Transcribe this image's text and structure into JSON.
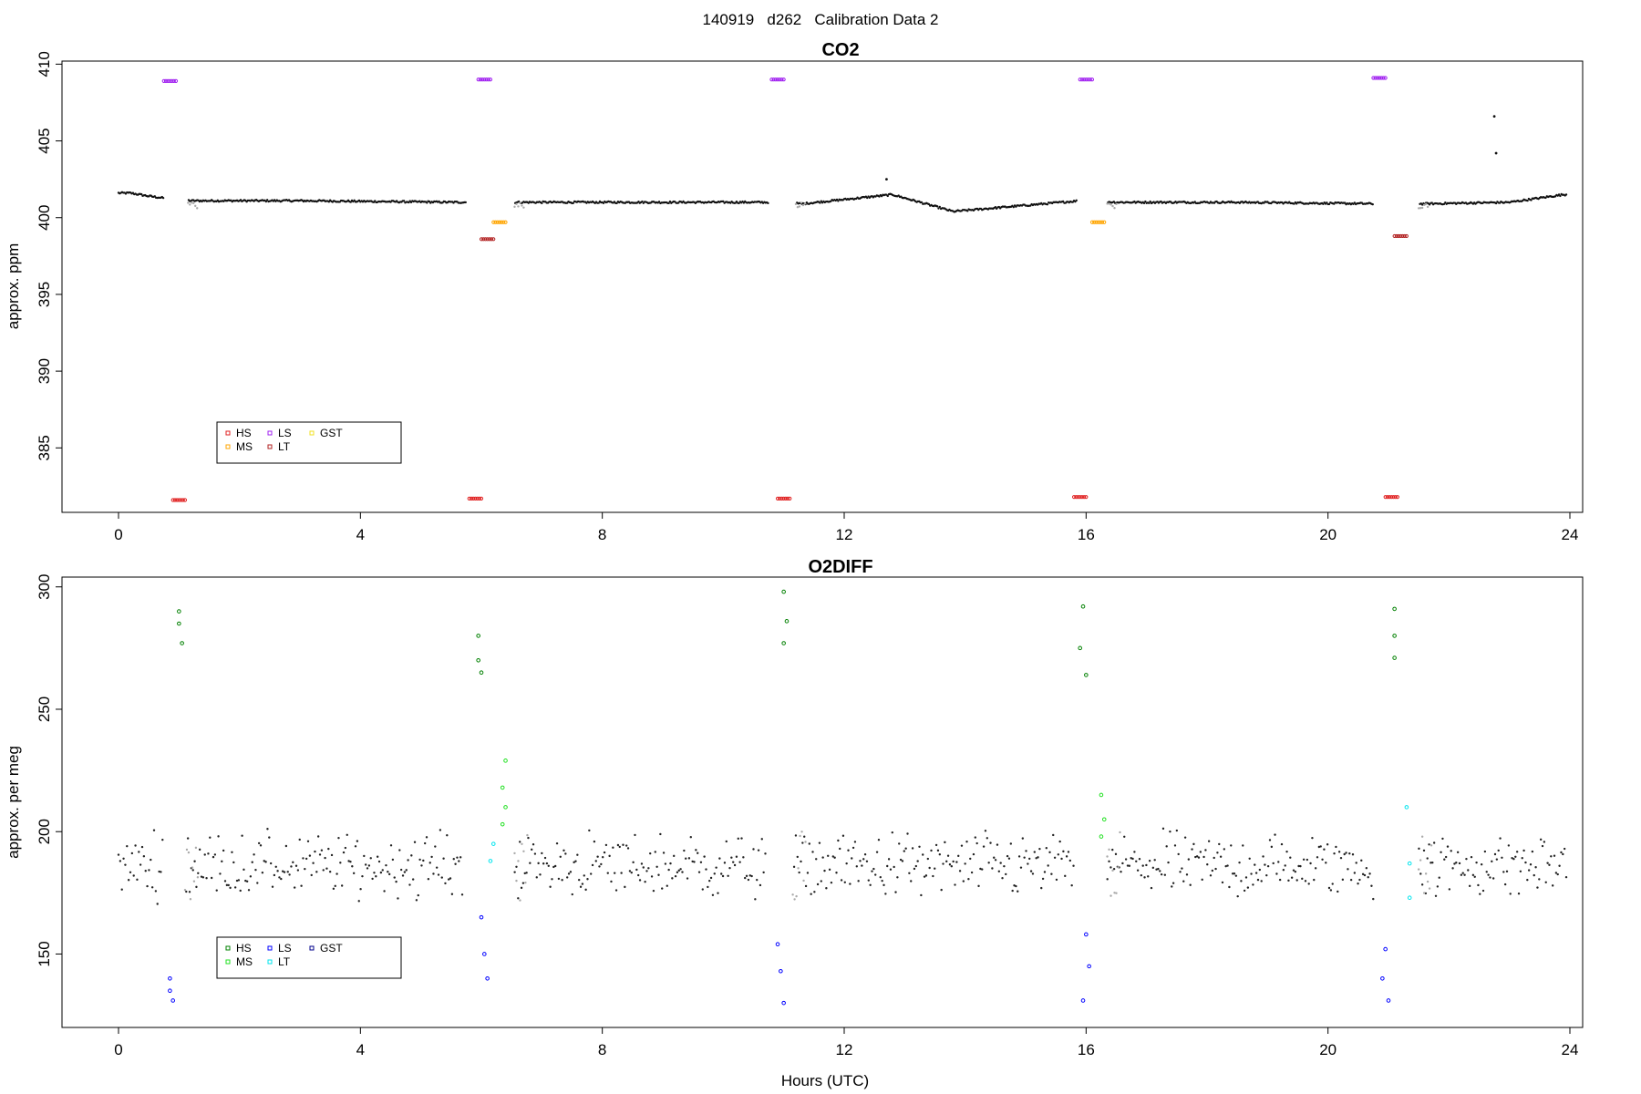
{
  "page_title": "140919   d262   Calibration Data 2",
  "chart_data": [
    {
      "type": "scatter",
      "title": "CO2",
      "xlabel": "",
      "ylabel": "approx. ppm",
      "xlim": [
        0,
        24
      ],
      "ylim": [
        380.8,
        410.2
      ],
      "xticks": [
        0,
        4,
        8,
        12,
        16,
        20,
        24
      ],
      "yticks": [
        385,
        390,
        395,
        400,
        405,
        410
      ],
      "grid": false,
      "legend_placement": "bottom-left",
      "legend": [
        {
          "label": "HS",
          "color": "#e02020"
        },
        {
          "label": "MS",
          "color": "#ffa500"
        },
        {
          "label": "LS",
          "color": "#a020f0"
        },
        {
          "label": "LT",
          "color": "#b22222"
        },
        {
          "label": "GST",
          "color": "#f0e020"
        }
      ],
      "background_points": [
        {
          "x": 0.2,
          "y": 401.6
        },
        {
          "x": 0.5,
          "y": 401.4
        },
        {
          "x": 0.7,
          "y": 401.3
        },
        {
          "x": 1.2,
          "y": 401.1
        },
        {
          "x": 3.0,
          "y": 401.1
        },
        {
          "x": 5.6,
          "y": 401.0
        },
        {
          "x": 6.6,
          "y": 401.0
        },
        {
          "x": 8.5,
          "y": 401.0
        },
        {
          "x": 10.8,
          "y": 401.0
        },
        {
          "x": 11.3,
          "y": 400.9
        },
        {
          "x": 12.8,
          "y": 401.5
        },
        {
          "x": 13.8,
          "y": 400.4
        },
        {
          "x": 15.9,
          "y": 401.1
        },
        {
          "x": 16.5,
          "y": 401.0
        },
        {
          "x": 18.5,
          "y": 401.0
        },
        {
          "x": 20.8,
          "y": 400.9
        },
        {
          "x": 21.6,
          "y": 400.9
        },
        {
          "x": 23.0,
          "y": 401.0
        },
        {
          "x": 23.9,
          "y": 401.5
        }
      ],
      "outliers": [
        {
          "x": 22.75,
          "y": 406.6
        },
        {
          "x": 22.78,
          "y": 404.2
        },
        {
          "x": 12.7,
          "y": 402.5
        }
      ],
      "series": [
        {
          "name": "HS",
          "color": "#e02020",
          "points": [
            {
              "x": 1.0,
              "y": 381.6
            },
            {
              "x": 5.9,
              "y": 381.7
            },
            {
              "x": 11.0,
              "y": 381.7
            },
            {
              "x": 15.9,
              "y": 381.8
            },
            {
              "x": 21.05,
              "y": 381.8
            }
          ]
        },
        {
          "name": "MS",
          "color": "#ffa500",
          "points": [
            {
              "x": 6.3,
              "y": 399.7
            },
            {
              "x": 16.2,
              "y": 399.7
            }
          ]
        },
        {
          "name": "LS",
          "color": "#a020f0",
          "points": [
            {
              "x": 0.85,
              "y": 408.9
            },
            {
              "x": 6.05,
              "y": 409.0
            },
            {
              "x": 10.9,
              "y": 409.0
            },
            {
              "x": 16.0,
              "y": 409.0
            },
            {
              "x": 20.85,
              "y": 409.1
            }
          ]
        },
        {
          "name": "LT",
          "color": "#b22222",
          "points": [
            {
              "x": 6.1,
              "y": 398.6
            },
            {
              "x": 21.2,
              "y": 398.8
            }
          ]
        }
      ]
    },
    {
      "type": "scatter",
      "title": "O2DIFF",
      "xlabel": "Hours (UTC)",
      "ylabel": "approx. per meg",
      "xlim": [
        0,
        24
      ],
      "ylim": [
        120,
        304
      ],
      "xticks": [
        0,
        4,
        8,
        12,
        16,
        20,
        24
      ],
      "yticks": [
        150,
        200,
        250,
        300
      ],
      "grid": false,
      "legend_placement": "bottom-left",
      "legend": [
        {
          "label": "HS",
          "color": "#008000"
        },
        {
          "label": "MS",
          "color": "#20e020"
        },
        {
          "label": "LS",
          "color": "#0000ff"
        },
        {
          "label": "LT",
          "color": "#00e5ee"
        },
        {
          "label": "GST",
          "color": "#00008b"
        }
      ],
      "background_mean": 186,
      "background_spread": 14,
      "series": [
        {
          "name": "HS",
          "color": "#008000",
          "points": [
            {
              "x": 1.0,
              "y": 290
            },
            {
              "x": 1.0,
              "y": 285
            },
            {
              "x": 1.05,
              "y": 277
            },
            {
              "x": 5.95,
              "y": 280
            },
            {
              "x": 5.95,
              "y": 270
            },
            {
              "x": 6.0,
              "y": 265
            },
            {
              "x": 11.0,
              "y": 298
            },
            {
              "x": 11.05,
              "y": 286
            },
            {
              "x": 11.0,
              "y": 277
            },
            {
              "x": 15.95,
              "y": 292
            },
            {
              "x": 15.9,
              "y": 275
            },
            {
              "x": 16.0,
              "y": 264
            },
            {
              "x": 21.1,
              "y": 291
            },
            {
              "x": 21.1,
              "y": 280
            },
            {
              "x": 21.1,
              "y": 271
            }
          ]
        },
        {
          "name": "MS",
          "color": "#20e020",
          "points": [
            {
              "x": 6.4,
              "y": 229
            },
            {
              "x": 6.35,
              "y": 218
            },
            {
              "x": 6.4,
              "y": 210
            },
            {
              "x": 6.35,
              "y": 203
            },
            {
              "x": 16.25,
              "y": 215
            },
            {
              "x": 16.3,
              "y": 205
            },
            {
              "x": 16.25,
              "y": 198
            }
          ]
        },
        {
          "name": "LS",
          "color": "#0000ff",
          "points": [
            {
              "x": 0.85,
              "y": 140
            },
            {
              "x": 0.85,
              "y": 135
            },
            {
              "x": 0.9,
              "y": 131
            },
            {
              "x": 6.0,
              "y": 165
            },
            {
              "x": 6.05,
              "y": 150
            },
            {
              "x": 6.1,
              "y": 140
            },
            {
              "x": 10.9,
              "y": 154
            },
            {
              "x": 10.95,
              "y": 143
            },
            {
              "x": 11.0,
              "y": 130
            },
            {
              "x": 16.0,
              "y": 158
            },
            {
              "x": 16.05,
              "y": 145
            },
            {
              "x": 15.95,
              "y": 131
            },
            {
              "x": 20.95,
              "y": 152
            },
            {
              "x": 20.9,
              "y": 140
            },
            {
              "x": 21.0,
              "y": 131
            }
          ]
        },
        {
          "name": "LT",
          "color": "#00e5ee",
          "points": [
            {
              "x": 6.2,
              "y": 195
            },
            {
              "x": 6.15,
              "y": 188
            },
            {
              "x": 21.3,
              "y": 210
            },
            {
              "x": 21.35,
              "y": 187
            },
            {
              "x": 21.35,
              "y": 173
            }
          ]
        }
      ]
    }
  ]
}
